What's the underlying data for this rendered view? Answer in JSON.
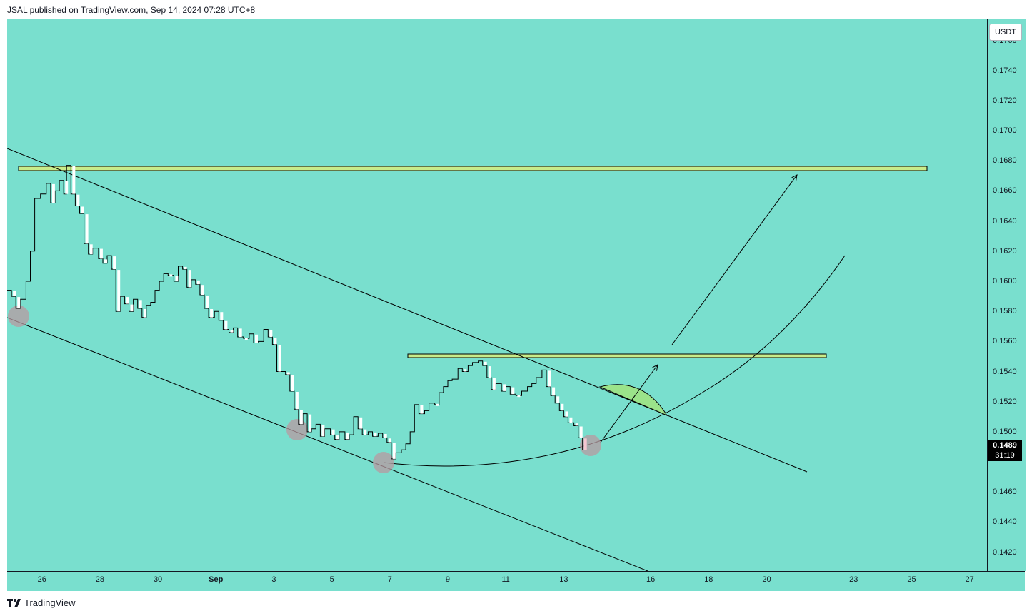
{
  "header": {
    "text": "JSAL published on TradingView.com, Sep 14, 2024 07:28 UTC+8"
  },
  "footer": {
    "brand": "TradingView"
  },
  "colors": {
    "background": "#79dfce",
    "line": "#000000",
    "zone_fill": "#c8ec8a",
    "arc_fill": "#9be38a",
    "marker": "#b89aa0"
  },
  "chart_data": {
    "type": "line",
    "currency": "USDT",
    "last_price": "0.1489",
    "countdown": "31:19",
    "y_ticks": [
      "0.1760",
      "0.1740",
      "0.1720",
      "0.1700",
      "0.1680",
      "0.1660",
      "0.1640",
      "0.1620",
      "0.1600",
      "0.1580",
      "0.1560",
      "0.1540",
      "0.1520",
      "0.1500",
      "0.1460",
      "0.1440",
      "0.1420"
    ],
    "x_ticks": [
      {
        "label": "26",
        "month": false
      },
      {
        "label": "28",
        "month": false
      },
      {
        "label": "30",
        "month": false
      },
      {
        "label": "Sep",
        "month": true
      },
      {
        "label": "3",
        "month": false
      },
      {
        "label": "5",
        "month": false
      },
      {
        "label": "7",
        "month": false
      },
      {
        "label": "9",
        "month": false
      },
      {
        "label": "11",
        "month": false
      },
      {
        "label": "13",
        "month": false
      },
      {
        "label": "16",
        "month": false
      },
      {
        "label": "18",
        "month": false
      },
      {
        "label": "20",
        "month": false
      },
      {
        "label": "23",
        "month": false
      },
      {
        "label": "25",
        "month": false
      },
      {
        "label": "27",
        "month": false
      }
    ],
    "x_tick_days": [
      -6,
      -4,
      -2,
      0,
      2,
      4,
      6,
      8,
      10,
      12,
      15,
      17,
      19,
      22,
      24,
      26
    ],
    "x_range": [
      -7.2,
      26.6
    ],
    "y_range": [
      0.14075,
      0.1774
    ],
    "series": [
      {
        "values": [
          [
            -7.2,
            0.1594
          ],
          [
            -7.05,
            0.159
          ],
          [
            -6.9,
            0.1582
          ],
          [
            -6.75,
            0.1588
          ],
          [
            -6.55,
            0.16
          ],
          [
            -6.4,
            0.162
          ],
          [
            -6.25,
            0.1655
          ],
          [
            -6.05,
            0.1658
          ],
          [
            -5.85,
            0.1665
          ],
          [
            -5.7,
            0.1652
          ],
          [
            -5.55,
            0.166
          ],
          [
            -5.4,
            0.1667
          ],
          [
            -5.25,
            0.1658
          ],
          [
            -5.15,
            0.1677
          ],
          [
            -5.0,
            0.1658
          ],
          [
            -4.85,
            0.165
          ],
          [
            -4.7,
            0.1645
          ],
          [
            -4.55,
            0.1625
          ],
          [
            -4.4,
            0.1618
          ],
          [
            -4.25,
            0.1622
          ],
          [
            -4.05,
            0.1615
          ],
          [
            -3.9,
            0.1612
          ],
          [
            -3.75,
            0.1617
          ],
          [
            -3.6,
            0.1608
          ],
          [
            -3.45,
            0.158
          ],
          [
            -3.3,
            0.159
          ],
          [
            -3.15,
            0.1585
          ],
          [
            -3.0,
            0.158
          ],
          [
            -2.85,
            0.1588
          ],
          [
            -2.7,
            0.1582
          ],
          [
            -2.55,
            0.1576
          ],
          [
            -2.4,
            0.1584
          ],
          [
            -2.25,
            0.1586
          ],
          [
            -2.1,
            0.1594
          ],
          [
            -1.95,
            0.16
          ],
          [
            -1.8,
            0.1605
          ],
          [
            -1.65,
            0.1604
          ],
          [
            -1.45,
            0.16
          ],
          [
            -1.3,
            0.161
          ],
          [
            -1.15,
            0.1608
          ],
          [
            -1.0,
            0.1596
          ],
          [
            -0.85,
            0.1601
          ],
          [
            -0.7,
            0.1598
          ],
          [
            -0.55,
            0.1591
          ],
          [
            -0.4,
            0.1582
          ],
          [
            -0.25,
            0.1576
          ],
          [
            -0.05,
            0.158
          ],
          [
            0.1,
            0.1574
          ],
          [
            0.25,
            0.1568
          ],
          [
            0.45,
            0.1566
          ],
          [
            0.6,
            0.1569
          ],
          [
            0.75,
            0.1563
          ],
          [
            0.95,
            0.1562
          ],
          [
            1.15,
            0.1565
          ],
          [
            1.3,
            0.1559
          ],
          [
            1.45,
            0.156
          ],
          [
            1.65,
            0.1568
          ],
          [
            1.8,
            0.1563
          ],
          [
            1.95,
            0.1558
          ],
          [
            2.1,
            0.154
          ],
          [
            2.25,
            0.154
          ],
          [
            2.4,
            0.1538
          ],
          [
            2.55,
            0.1527
          ],
          [
            2.7,
            0.1515
          ],
          [
            2.85,
            0.1505
          ],
          [
            3.0,
            0.1512
          ],
          [
            3.15,
            0.15
          ],
          [
            3.3,
            0.1502
          ],
          [
            3.45,
            0.1505
          ],
          [
            3.6,
            0.1497
          ],
          [
            3.75,
            0.1502
          ],
          [
            3.95,
            0.1498
          ],
          [
            4.1,
            0.1495
          ],
          [
            4.25,
            0.15
          ],
          [
            4.45,
            0.1495
          ],
          [
            4.6,
            0.1498
          ],
          [
            4.75,
            0.151
          ],
          [
            4.9,
            0.1502
          ],
          [
            5.05,
            0.1498
          ],
          [
            5.25,
            0.15
          ],
          [
            5.4,
            0.1497
          ],
          [
            5.6,
            0.1499
          ],
          [
            5.75,
            0.1496
          ],
          [
            5.9,
            0.1493
          ],
          [
            6.05,
            0.1482
          ],
          [
            6.2,
            0.1486
          ],
          [
            6.4,
            0.1488
          ],
          [
            6.55,
            0.1492
          ],
          [
            6.7,
            0.15
          ],
          [
            6.85,
            0.1518
          ],
          [
            7.0,
            0.1512
          ],
          [
            7.2,
            0.1514
          ],
          [
            7.35,
            0.1519
          ],
          [
            7.55,
            0.1518
          ],
          [
            7.7,
            0.1526
          ],
          [
            7.85,
            0.153
          ],
          [
            8.0,
            0.1534
          ],
          [
            8.15,
            0.1535
          ],
          [
            8.35,
            0.1542
          ],
          [
            8.5,
            0.154
          ],
          [
            8.7,
            0.1544
          ],
          [
            8.85,
            0.1546
          ],
          [
            9.05,
            0.1547
          ],
          [
            9.2,
            0.1544
          ],
          [
            9.35,
            0.1536
          ],
          [
            9.5,
            0.1528
          ],
          [
            9.65,
            0.1532
          ],
          [
            9.85,
            0.1527
          ],
          [
            10.0,
            0.153
          ],
          [
            10.15,
            0.1525
          ],
          [
            10.35,
            0.1524
          ],
          [
            10.55,
            0.1527
          ],
          [
            10.75,
            0.153
          ],
          [
            10.9,
            0.1532
          ],
          [
            11.05,
            0.1536
          ],
          [
            11.25,
            0.1541
          ],
          [
            11.4,
            0.153
          ],
          [
            11.55,
            0.1524
          ],
          [
            11.7,
            0.1519
          ],
          [
            11.85,
            0.1514
          ],
          [
            12.0,
            0.151
          ],
          [
            12.15,
            0.1506
          ],
          [
            12.35,
            0.1504
          ],
          [
            12.5,
            0.1496
          ],
          [
            12.65,
            0.1488
          ]
        ]
      }
    ]
  }
}
